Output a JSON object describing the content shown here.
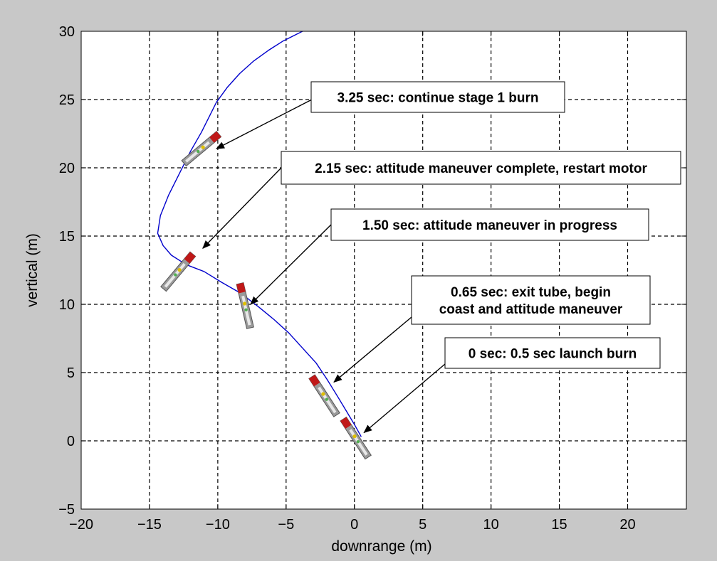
{
  "chart_data": {
    "type": "line",
    "xlabel": "downrange (m)",
    "ylabel": "vertical (m)",
    "xlim": [
      -20,
      24.3
    ],
    "ylim": [
      -5,
      30
    ],
    "xticks": [
      -20,
      -15,
      -10,
      -5,
      0,
      5,
      10,
      15,
      20
    ],
    "yticks": [
      -5,
      0,
      5,
      10,
      15,
      20,
      25,
      30
    ],
    "xtick_labels": [
      "−20",
      "−15",
      "−10",
      "−5",
      "0",
      "5",
      "10",
      "15",
      "20"
    ],
    "ytick_labels": [
      "−5",
      "0",
      "5",
      "10",
      "15",
      "20",
      "25",
      "30"
    ],
    "grid": true,
    "series": [
      {
        "color": "#0000cc",
        "x": [
          0.5,
          0.0,
          -0.6,
          -1.2,
          -2.0,
          -2.8,
          -3.8,
          -4.8,
          -5.9,
          -7.0,
          -8.3,
          -9.7,
          -11.0,
          -12.3,
          -13.4,
          -14.0,
          -14.4,
          -14.2,
          -13.6,
          -12.8,
          -12.0,
          -11.2,
          -10.6,
          -10.1,
          -9.3,
          -8.4,
          -7.4,
          -6.3,
          -5.2,
          -3.8
        ],
        "y": [
          0.3,
          1.2,
          2.2,
          3.2,
          4.5,
          5.7,
          6.8,
          7.9,
          8.9,
          9.8,
          10.8,
          11.6,
          12.4,
          12.9,
          13.6,
          14.3,
          15.2,
          16.5,
          18.0,
          19.6,
          21.2,
          22.6,
          23.8,
          24.8,
          25.9,
          26.9,
          27.8,
          28.6,
          29.3,
          30.0
        ]
      }
    ],
    "annotations": [
      {
        "id": "a1",
        "text": [
          "3.25 sec: continue stage 1 burn"
        ],
        "target": [
          -10.1,
          21.4
        ]
      },
      {
        "id": "a2",
        "text": [
          "2.15 sec: attitude maneuver complete, restart motor"
        ],
        "target": [
          -11.1,
          14.1
        ]
      },
      {
        "id": "a3",
        "text": [
          "1.50 sec: attitude maneuver in progress"
        ],
        "target": [
          -7.6,
          10.0
        ]
      },
      {
        "id": "a4",
        "text": [
          "0.65 sec: exit tube, begin",
          "coast and attitude maneuver"
        ],
        "target": [
          -1.5,
          4.3
        ]
      },
      {
        "id": "a5",
        "text": [
          "0 sec: 0.5 sec launch burn"
        ],
        "target": [
          0.7,
          0.6
        ]
      }
    ],
    "vehicles": [
      {
        "center": [
          0.1,
          0.2
        ],
        "tilt_deg": -33
      },
      {
        "center": [
          -2.2,
          3.3
        ],
        "tilt_deg": -33
      },
      {
        "center": [
          -8.0,
          9.9
        ],
        "tilt_deg": -13
      },
      {
        "center": [
          -12.9,
          12.4
        ],
        "tilt_deg": 40
      },
      {
        "center": [
          -11.2,
          21.4
        ],
        "tilt_deg": 50
      }
    ]
  }
}
